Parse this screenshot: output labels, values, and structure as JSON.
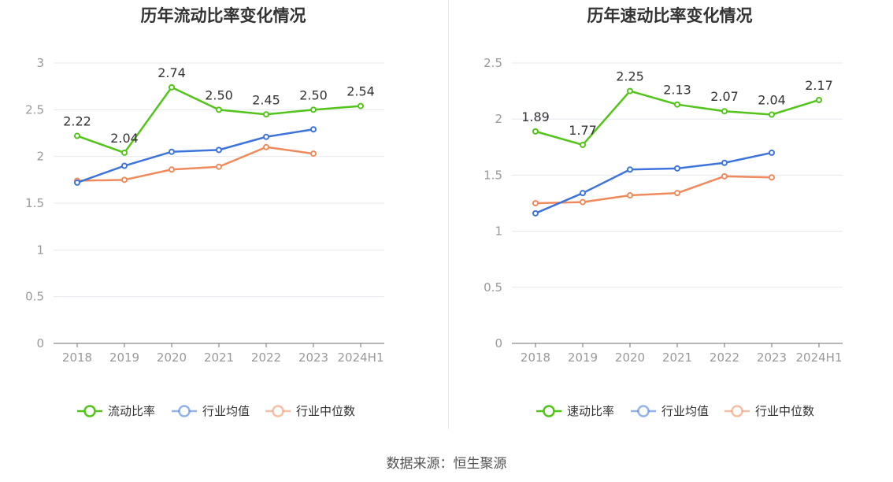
{
  "source": "数据来源：恒生聚源",
  "charts": [
    {
      "type": "line",
      "title": "历年流动比率变化情况",
      "categories": [
        "2018",
        "2019",
        "2020",
        "2021",
        "2022",
        "2023",
        "2024H1"
      ],
      "ylim": [
        0,
        3
      ],
      "yticks": [
        "0",
        "0.5",
        "1",
        "1.5",
        "2",
        "2.5",
        "3"
      ],
      "series": [
        {
          "name": "流动比率",
          "color": "#52c41a",
          "values": [
            2.22,
            2.04,
            2.74,
            2.5,
            2.45,
            2.5,
            2.54
          ],
          "labels": [
            "2.22",
            "2.04",
            "2.74",
            "2.50",
            "2.45",
            "2.50",
            "2.54"
          ]
        },
        {
          "name": "行业均值",
          "color": "#3d74db",
          "values": [
            1.72,
            1.9,
            2.05,
            2.07,
            2.21,
            2.29,
            null
          ]
        },
        {
          "name": "行业中位数",
          "color": "#f08a5d",
          "values": [
            1.74,
            1.75,
            1.86,
            1.89,
            2.1,
            2.03,
            null
          ]
        }
      ]
    },
    {
      "type": "line",
      "title": "历年速动比率变化情况",
      "categories": [
        "2018",
        "2019",
        "2020",
        "2021",
        "2022",
        "2023",
        "2024H1"
      ],
      "ylim": [
        0,
        2.5
      ],
      "yticks": [
        "0",
        "0.5",
        "1",
        "1.5",
        "2",
        "2.5"
      ],
      "series": [
        {
          "name": "速动比率",
          "color": "#52c41a",
          "values": [
            1.89,
            1.77,
            2.25,
            2.13,
            2.07,
            2.04,
            2.17
          ],
          "labels": [
            "1.89",
            "1.77",
            "2.25",
            "2.13",
            "2.07",
            "2.04",
            "2.17"
          ]
        },
        {
          "name": "行业均值",
          "color": "#3d74db",
          "values": [
            1.16,
            1.34,
            1.55,
            1.56,
            1.61,
            1.7,
            null
          ]
        },
        {
          "name": "行业中位数",
          "color": "#f08a5d",
          "values": [
            1.25,
            1.26,
            1.32,
            1.34,
            1.49,
            1.48,
            null
          ]
        }
      ]
    }
  ],
  "chart_data": [
    {
      "type": "line",
      "title": "历年流动比率变化情况",
      "categories": [
        "2018",
        "2019",
        "2020",
        "2021",
        "2022",
        "2023",
        "2024H1"
      ],
      "ylim": [
        0,
        3
      ],
      "series": [
        {
          "name": "流动比率",
          "values": [
            2.22,
            2.04,
            2.74,
            2.5,
            2.45,
            2.5,
            2.54
          ]
        },
        {
          "name": "行业均值",
          "values": [
            1.72,
            1.9,
            2.05,
            2.07,
            2.21,
            2.29,
            null
          ]
        },
        {
          "name": "行业中位数",
          "values": [
            1.74,
            1.75,
            1.86,
            1.89,
            2.1,
            2.03,
            null
          ]
        }
      ]
    },
    {
      "type": "line",
      "title": "历年速动比率变化情况",
      "categories": [
        "2018",
        "2019",
        "2020",
        "2021",
        "2022",
        "2023",
        "2024H1"
      ],
      "ylim": [
        0,
        2.5
      ],
      "series": [
        {
          "name": "速动比率",
          "values": [
            1.89,
            1.77,
            2.25,
            2.13,
            2.07,
            2.04,
            2.17
          ]
        },
        {
          "name": "行业均值",
          "values": [
            1.16,
            1.34,
            1.55,
            1.56,
            1.61,
            1.7,
            null
          ]
        },
        {
          "name": "行业中位数",
          "values": [
            1.25,
            1.26,
            1.32,
            1.34,
            1.49,
            1.48,
            null
          ]
        }
      ]
    }
  ]
}
